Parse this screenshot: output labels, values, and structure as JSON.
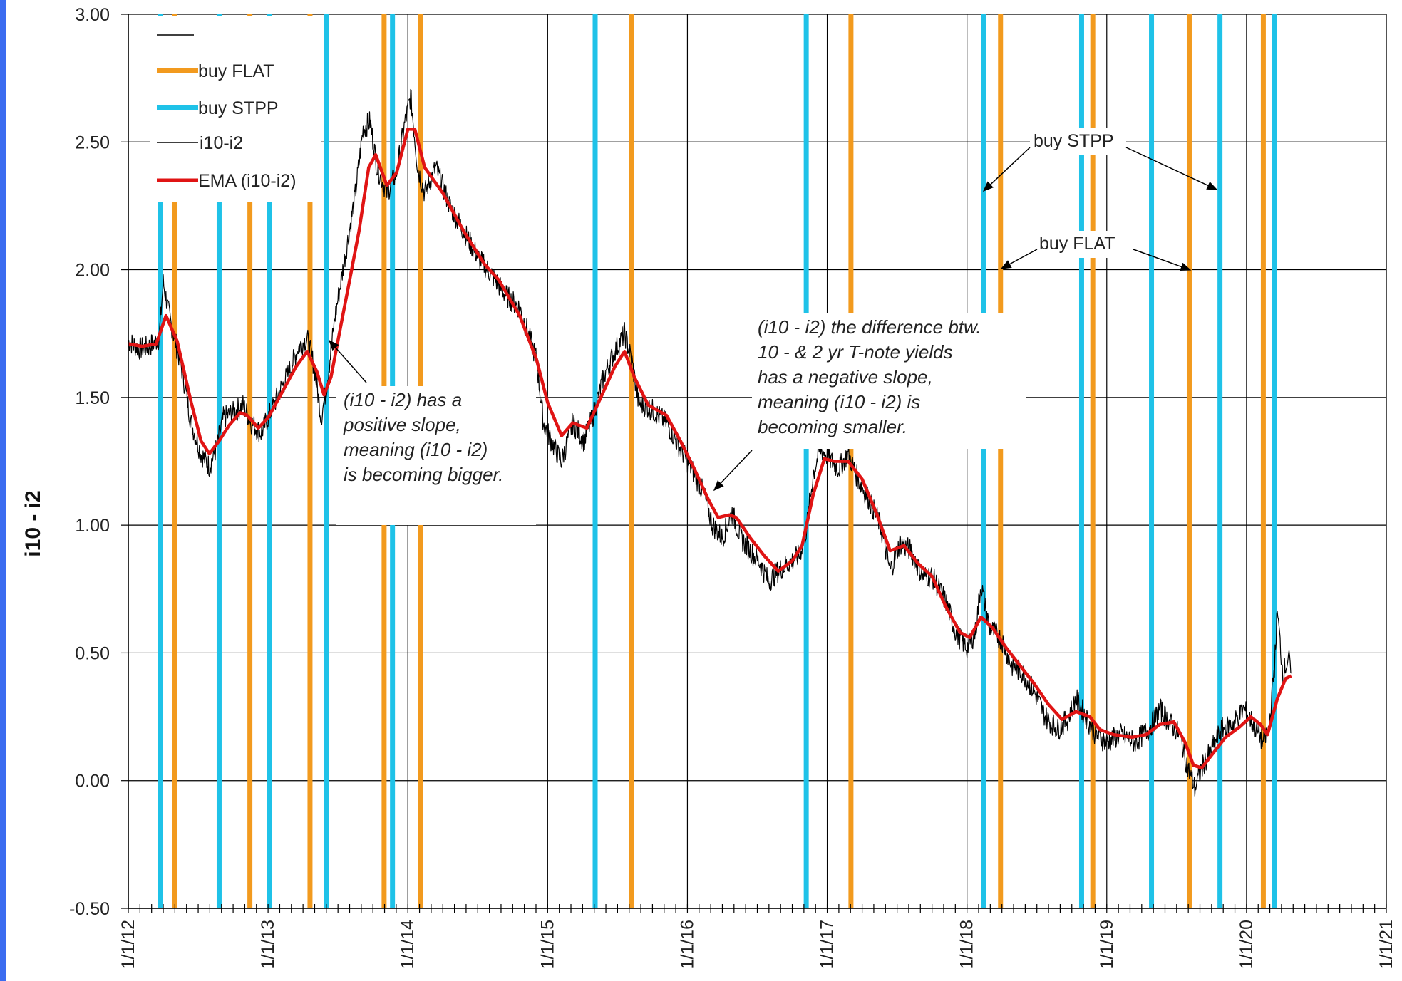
{
  "chart_data": {
    "type": "line",
    "title": "",
    "xlabel": "",
    "ylabel": "i10 - i2",
    "ylim": [
      -0.5,
      3.0
    ],
    "xlim": [
      "1/1/12",
      "1/1/21"
    ],
    "y_ticks": [
      "3.00",
      "2.50",
      "2.00",
      "1.50",
      "1.00",
      "0.50",
      "0.00",
      "-0.50"
    ],
    "x_ticks": [
      "1/1/12",
      "1/1/13",
      "1/1/14",
      "1/1/15",
      "1/1/16",
      "1/1/17",
      "1/1/18",
      "1/1/19",
      "1/1/20",
      "1/1/21"
    ],
    "grid": true,
    "legend_position": "top-left",
    "legend": [
      {
        "label": "",
        "color": "#000000"
      },
      {
        "label": "buy FLAT",
        "color": "#f29a1e"
      },
      {
        "label": "buy STPP",
        "color": "#1fc2e8"
      },
      {
        "label": "i10-i2",
        "color": "#000000"
      },
      {
        "label": "EMA (i10-i2)",
        "color": "#e01414"
      }
    ],
    "buy_flat_dates": [
      2012.33,
      2012.87,
      2013.3,
      2013.83,
      2014.09,
      2015.6,
      2017.17,
      2018.24,
      2018.9,
      2019.59,
      2020.12
    ],
    "buy_stpp_dates": [
      2012.23,
      2012.65,
      2013.01,
      2013.42,
      2013.89,
      2015.34,
      2016.85,
      2018.12,
      2018.82,
      2019.32,
      2019.81,
      2020.2
    ],
    "series": [
      {
        "name": "i10-i2",
        "color": "#000000",
        "points": [
          [
            2012.0,
            1.72
          ],
          [
            2012.08,
            1.69
          ],
          [
            2012.15,
            1.7
          ],
          [
            2012.22,
            1.73
          ],
          [
            2012.25,
            1.95
          ],
          [
            2012.3,
            1.8
          ],
          [
            2012.38,
            1.62
          ],
          [
            2012.45,
            1.4
          ],
          [
            2012.52,
            1.28
          ],
          [
            2012.58,
            1.23
          ],
          [
            2012.63,
            1.3
          ],
          [
            2012.68,
            1.42
          ],
          [
            2012.75,
            1.44
          ],
          [
            2012.82,
            1.47
          ],
          [
            2012.88,
            1.4
          ],
          [
            2012.95,
            1.36
          ],
          [
            2013.0,
            1.42
          ],
          [
            2013.08,
            1.52
          ],
          [
            2013.15,
            1.6
          ],
          [
            2013.22,
            1.7
          ],
          [
            2013.28,
            1.73
          ],
          [
            2013.33,
            1.62
          ],
          [
            2013.38,
            1.42
          ],
          [
            2013.42,
            1.55
          ],
          [
            2013.48,
            1.82
          ],
          [
            2013.55,
            2.05
          ],
          [
            2013.62,
            2.28
          ],
          [
            2013.68,
            2.55
          ],
          [
            2013.73,
            2.58
          ],
          [
            2013.78,
            2.4
          ],
          [
            2013.85,
            2.3
          ],
          [
            2013.92,
            2.38
          ],
          [
            2013.97,
            2.55
          ],
          [
            2014.02,
            2.68
          ],
          [
            2014.07,
            2.4
          ],
          [
            2014.12,
            2.3
          ],
          [
            2014.2,
            2.4
          ],
          [
            2014.3,
            2.25
          ],
          [
            2014.4,
            2.15
          ],
          [
            2014.5,
            2.05
          ],
          [
            2014.6,
            1.98
          ],
          [
            2014.7,
            1.9
          ],
          [
            2014.8,
            1.85
          ],
          [
            2014.92,
            1.65
          ],
          [
            2014.97,
            1.4
          ],
          [
            2015.05,
            1.3
          ],
          [
            2015.1,
            1.25
          ],
          [
            2015.18,
            1.4
          ],
          [
            2015.26,
            1.33
          ],
          [
            2015.32,
            1.42
          ],
          [
            2015.4,
            1.58
          ],
          [
            2015.48,
            1.68
          ],
          [
            2015.55,
            1.75
          ],
          [
            2015.6,
            1.65
          ],
          [
            2015.65,
            1.48
          ],
          [
            2015.75,
            1.45
          ],
          [
            2015.85,
            1.4
          ],
          [
            2015.95,
            1.3
          ],
          [
            2016.05,
            1.2
          ],
          [
            2016.12,
            1.12
          ],
          [
            2016.18,
            1.0
          ],
          [
            2016.25,
            0.95
          ],
          [
            2016.32,
            1.05
          ],
          [
            2016.38,
            0.95
          ],
          [
            2016.45,
            0.9
          ],
          [
            2016.52,
            0.85
          ],
          [
            2016.58,
            0.78
          ],
          [
            2016.65,
            0.82
          ],
          [
            2016.72,
            0.85
          ],
          [
            2016.8,
            0.88
          ],
          [
            2016.85,
            0.98
          ],
          [
            2016.9,
            1.2
          ],
          [
            2016.95,
            1.3
          ],
          [
            2017.0,
            1.27
          ],
          [
            2017.08,
            1.22
          ],
          [
            2017.15,
            1.28
          ],
          [
            2017.22,
            1.18
          ],
          [
            2017.3,
            1.1
          ],
          [
            2017.38,
            1.0
          ],
          [
            2017.45,
            0.82
          ],
          [
            2017.52,
            0.93
          ],
          [
            2017.6,
            0.9
          ],
          [
            2017.68,
            0.8
          ],
          [
            2017.75,
            0.8
          ],
          [
            2017.85,
            0.7
          ],
          [
            2017.92,
            0.58
          ],
          [
            2018.0,
            0.52
          ],
          [
            2018.06,
            0.58
          ],
          [
            2018.1,
            0.77
          ],
          [
            2018.16,
            0.6
          ],
          [
            2018.25,
            0.55
          ],
          [
            2018.32,
            0.45
          ],
          [
            2018.4,
            0.42
          ],
          [
            2018.48,
            0.35
          ],
          [
            2018.56,
            0.25
          ],
          [
            2018.65,
            0.2
          ],
          [
            2018.72,
            0.24
          ],
          [
            2018.78,
            0.32
          ],
          [
            2018.85,
            0.25
          ],
          [
            2018.92,
            0.18
          ],
          [
            2019.0,
            0.15
          ],
          [
            2019.1,
            0.18
          ],
          [
            2019.2,
            0.15
          ],
          [
            2019.3,
            0.2
          ],
          [
            2019.38,
            0.28
          ],
          [
            2019.46,
            0.22
          ],
          [
            2019.52,
            0.18
          ],
          [
            2019.58,
            0.05
          ],
          [
            2019.63,
            -0.03
          ],
          [
            2019.68,
            0.05
          ],
          [
            2019.75,
            0.12
          ],
          [
            2019.82,
            0.2
          ],
          [
            2019.9,
            0.22
          ],
          [
            2019.98,
            0.28
          ],
          [
            2020.05,
            0.22
          ],
          [
            2020.12,
            0.15
          ],
          [
            2020.16,
            0.2
          ],
          [
            2020.2,
            0.45
          ],
          [
            2020.22,
            0.66
          ],
          [
            2020.26,
            0.42
          ],
          [
            2020.3,
            0.48
          ],
          [
            2020.32,
            0.42
          ]
        ]
      },
      {
        "name": "EMA (i10-i2)",
        "color": "#e01414",
        "points": [
          [
            2012.0,
            1.71
          ],
          [
            2012.1,
            1.7
          ],
          [
            2012.2,
            1.71
          ],
          [
            2012.27,
            1.82
          ],
          [
            2012.35,
            1.72
          ],
          [
            2012.45,
            1.48
          ],
          [
            2012.52,
            1.33
          ],
          [
            2012.58,
            1.28
          ],
          [
            2012.65,
            1.33
          ],
          [
            2012.72,
            1.39
          ],
          [
            2012.8,
            1.44
          ],
          [
            2012.85,
            1.43
          ],
          [
            2012.93,
            1.38
          ],
          [
            2013.0,
            1.42
          ],
          [
            2013.1,
            1.52
          ],
          [
            2013.2,
            1.62
          ],
          [
            2013.28,
            1.68
          ],
          [
            2013.35,
            1.6
          ],
          [
            2013.4,
            1.51
          ],
          [
            2013.45,
            1.58
          ],
          [
            2013.52,
            1.78
          ],
          [
            2013.58,
            1.95
          ],
          [
            2013.65,
            2.15
          ],
          [
            2013.72,
            2.4
          ],
          [
            2013.77,
            2.45
          ],
          [
            2013.85,
            2.33
          ],
          [
            2013.92,
            2.38
          ],
          [
            2014.0,
            2.55
          ],
          [
            2014.05,
            2.55
          ],
          [
            2014.12,
            2.4
          ],
          [
            2014.25,
            2.3
          ],
          [
            2014.4,
            2.15
          ],
          [
            2014.55,
            2.02
          ],
          [
            2014.65,
            1.96
          ],
          [
            2014.8,
            1.82
          ],
          [
            2014.92,
            1.65
          ],
          [
            2015.0,
            1.48
          ],
          [
            2015.1,
            1.35
          ],
          [
            2015.18,
            1.4
          ],
          [
            2015.28,
            1.38
          ],
          [
            2015.38,
            1.5
          ],
          [
            2015.48,
            1.62
          ],
          [
            2015.55,
            1.68
          ],
          [
            2015.62,
            1.58
          ],
          [
            2015.72,
            1.47
          ],
          [
            2015.85,
            1.43
          ],
          [
            2015.95,
            1.33
          ],
          [
            2016.05,
            1.22
          ],
          [
            2016.15,
            1.1
          ],
          [
            2016.22,
            1.03
          ],
          [
            2016.3,
            1.04
          ],
          [
            2016.35,
            1.03
          ],
          [
            2016.45,
            0.95
          ],
          [
            2016.55,
            0.88
          ],
          [
            2016.65,
            0.82
          ],
          [
            2016.75,
            0.86
          ],
          [
            2016.82,
            0.92
          ],
          [
            2016.9,
            1.12
          ],
          [
            2016.98,
            1.26
          ],
          [
            2017.05,
            1.25
          ],
          [
            2017.15,
            1.25
          ],
          [
            2017.25,
            1.18
          ],
          [
            2017.35,
            1.05
          ],
          [
            2017.45,
            0.9
          ],
          [
            2017.55,
            0.92
          ],
          [
            2017.65,
            0.85
          ],
          [
            2017.75,
            0.8
          ],
          [
            2017.85,
            0.68
          ],
          [
            2017.95,
            0.58
          ],
          [
            2018.02,
            0.56
          ],
          [
            2018.1,
            0.64
          ],
          [
            2018.18,
            0.6
          ],
          [
            2018.28,
            0.52
          ],
          [
            2018.38,
            0.45
          ],
          [
            2018.48,
            0.38
          ],
          [
            2018.58,
            0.3
          ],
          [
            2018.68,
            0.24
          ],
          [
            2018.78,
            0.27
          ],
          [
            2018.88,
            0.25
          ],
          [
            2018.95,
            0.2
          ],
          [
            2019.05,
            0.18
          ],
          [
            2019.18,
            0.17
          ],
          [
            2019.28,
            0.18
          ],
          [
            2019.38,
            0.22
          ],
          [
            2019.48,
            0.23
          ],
          [
            2019.56,
            0.15
          ],
          [
            2019.62,
            0.06
          ],
          [
            2019.68,
            0.05
          ],
          [
            2019.75,
            0.1
          ],
          [
            2019.85,
            0.17
          ],
          [
            2019.95,
            0.21
          ],
          [
            2020.03,
            0.25
          ],
          [
            2020.1,
            0.22
          ],
          [
            2020.15,
            0.18
          ],
          [
            2020.22,
            0.32
          ],
          [
            2020.28,
            0.4
          ],
          [
            2020.32,
            0.41
          ]
        ]
      }
    ],
    "annotations": [
      {
        "lines": [
          "(i10 - i2)   has a",
          "positive  slope,",
          "meaning  (i10 - i2)",
          "is becoming  bigger."
        ]
      },
      {
        "lines": [
          "(i10 - i2)  the  difference  btw.",
          "10 - & 2 yr  T-note  yields",
          "has  a  negative  slope,",
          "meaning  (i10 - i2)  is",
          "becoming  smaller."
        ]
      },
      {
        "label": "buy STPP"
      },
      {
        "label": "buy FLAT"
      }
    ]
  }
}
